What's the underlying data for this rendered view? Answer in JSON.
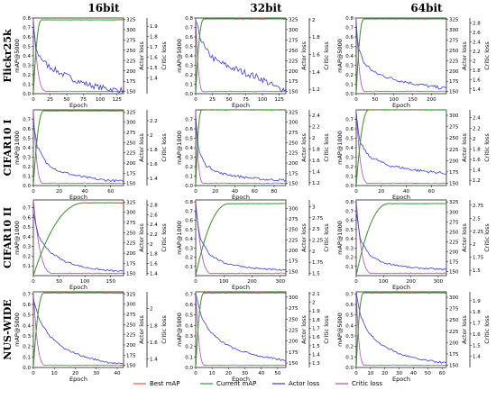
{
  "column_headers": [
    "16bit",
    "32bit",
    "64bit"
  ],
  "row_headers": [
    "Flickr25k",
    "CIFAR10 I",
    "CIFAR10 II",
    "NUS-WIDE"
  ],
  "legend": [
    "Best mAP",
    "Current mAP",
    "Actor loss",
    "Critic loss"
  ],
  "colors": {
    "best_map": "#e8534f",
    "current_map": "#2ca02c",
    "actor_loss": "#3b3bdc",
    "critic_loss": "#b04ab8"
  },
  "chart_data": [
    {
      "type": "line",
      "row": "Flickr25k",
      "col": "16bit",
      "xlabel": "Epoch",
      "ylabel": "mAP@5000",
      "y2label": "Actor loss",
      "y3label": "Critic loss",
      "xlim": [
        0,
        135
      ],
      "xticks": [
        0,
        25,
        50,
        75,
        100,
        125
      ],
      "ylim": [
        0,
        0.8
      ],
      "yticks": [
        0.0,
        0.1,
        0.2,
        0.3,
        0.4,
        0.5,
        0.6,
        0.7,
        0.8
      ],
      "y2lim": [
        145,
        328
      ],
      "y2ticks": [
        150,
        175,
        200,
        225,
        250,
        275,
        300,
        325
      ],
      "y3lim": [
        1.25,
        1.98
      ],
      "y3ticks": [
        1.4,
        1.5,
        1.6,
        1.7,
        1.8,
        1.9
      ],
      "map_rise_end": 12,
      "map_final": 0.78,
      "actor": [
        [
          0,
          300
        ],
        [
          5,
          245
        ],
        [
          20,
          215
        ],
        [
          40,
          195
        ],
        [
          60,
          180
        ],
        [
          80,
          168
        ],
        [
          100,
          160
        ],
        [
          120,
          155
        ],
        [
          135,
          153
        ]
      ],
      "critic_fall_end": 20,
      "noise": 7
    },
    {
      "type": "line",
      "row": "Flickr25k",
      "col": "32bit",
      "xlabel": "Epoch",
      "ylabel": "mAP@5000",
      "y2label": "Actor loss",
      "y3label": "Critic loss",
      "xlim": [
        0,
        135
      ],
      "xticks": [
        0,
        25,
        50,
        75,
        100,
        125
      ],
      "ylim": [
        0,
        0.8
      ],
      "yticks": [
        0.0,
        0.1,
        0.2,
        0.3,
        0.4,
        0.5,
        0.6,
        0.7,
        0.8
      ],
      "y2lim": [
        145,
        328
      ],
      "y2ticks": [
        150,
        175,
        200,
        225,
        250,
        275,
        300,
        325
      ],
      "y3lim": [
        1.15,
        2.02
      ],
      "y3ticks": [
        1.2,
        1.4,
        1.6,
        1.8,
        2.0
      ],
      "map_rise_end": 12,
      "map_final": 0.79,
      "actor": [
        [
          0,
          320
        ],
        [
          5,
          290
        ],
        [
          15,
          250
        ],
        [
          30,
          225
        ],
        [
          50,
          210
        ],
        [
          75,
          195
        ],
        [
          100,
          180
        ],
        [
          120,
          160
        ],
        [
          135,
          155
        ]
      ],
      "critic_fall_end": 12,
      "noise": 8
    },
    {
      "type": "line",
      "row": "Flickr25k",
      "col": "64bit",
      "xlabel": "Epoch",
      "ylabel": "mAP@5000",
      "y2label": "Actor loss",
      "y3label": "Critic loss",
      "xlim": [
        0,
        240
      ],
      "xticks": [
        0,
        50,
        100,
        150,
        200
      ],
      "ylim": [
        0,
        0.8
      ],
      "yticks": [
        0.0,
        0.1,
        0.2,
        0.3,
        0.4,
        0.5,
        0.6,
        0.7,
        0.8
      ],
      "y2lim": [
        145,
        328
      ],
      "y2ticks": [
        150,
        175,
        200,
        225,
        250,
        275,
        300,
        325
      ],
      "y3lim": [
        1.3,
        2.9
      ],
      "y3ticks": [
        1.4,
        1.6,
        1.8,
        2.0,
        2.2,
        2.4,
        2.6,
        2.8
      ],
      "map_rise_end": 20,
      "map_final": 0.79,
      "actor": [
        [
          0,
          310
        ],
        [
          5,
          260
        ],
        [
          20,
          220
        ],
        [
          50,
          195
        ],
        [
          100,
          180
        ],
        [
          150,
          170
        ],
        [
          200,
          162
        ],
        [
          240,
          158
        ]
      ],
      "critic_fall_end": 25,
      "noise": 4
    },
    {
      "type": "line",
      "row": "CIFAR10 I",
      "col": "16bit",
      "xlabel": "Epoch",
      "ylabel": "mAP@1000",
      "y2label": "Actor loss",
      "y3label": "Critic loss",
      "xlim": [
        0,
        70
      ],
      "xticks": [
        0,
        20,
        40,
        60
      ],
      "ylim": [
        0,
        0.8
      ],
      "yticks": [
        0.0,
        0.1,
        0.2,
        0.3,
        0.4,
        0.5,
        0.6,
        0.7
      ],
      "y2lim": [
        145,
        330
      ],
      "y2ticks": [
        150,
        175,
        200,
        225,
        250,
        275,
        300,
        325
      ],
      "y3lim": [
        1.3,
        2.35
      ],
      "y3ticks": [
        1.4,
        1.6,
        1.8,
        2.0,
        2.2
      ],
      "map_rise_end": 8,
      "map_final": 0.79,
      "actor": [
        [
          0,
          300
        ],
        [
          3,
          240
        ],
        [
          10,
          200
        ],
        [
          20,
          180
        ],
        [
          35,
          168
        ],
        [
          50,
          160
        ],
        [
          70,
          155
        ]
      ],
      "critic_fall_end": 8,
      "noise": 3
    },
    {
      "type": "line",
      "row": "CIFAR10 I",
      "col": "32bit",
      "xlabel": "Epoch",
      "ylabel": "mAP@1000",
      "y2label": "Actor loss",
      "y3label": "Critic loss",
      "xlim": [
        0,
        92
      ],
      "xticks": [
        0,
        20,
        40,
        60,
        80
      ],
      "ylim": [
        0,
        0.8
      ],
      "yticks": [
        0.0,
        0.1,
        0.2,
        0.3,
        0.4,
        0.5,
        0.6,
        0.7
      ],
      "y2lim": [
        145,
        330
      ],
      "y2ticks": [
        150,
        175,
        200,
        225,
        250,
        275,
        300,
        325
      ],
      "y3lim": [
        1.15,
        2.5
      ],
      "y3ticks": [
        1.2,
        1.4,
        1.6,
        1.8,
        2.0,
        2.2,
        2.4
      ],
      "map_rise_end": 6,
      "map_final": 0.8,
      "actor": [
        [
          0,
          310
        ],
        [
          3,
          230
        ],
        [
          10,
          195
        ],
        [
          25,
          175
        ],
        [
          50,
          165
        ],
        [
          70,
          160
        ],
        [
          92,
          158
        ]
      ],
      "critic_fall_end": 8,
      "noise": 3
    },
    {
      "type": "line",
      "row": "CIFAR10 I",
      "col": "64bit",
      "xlabel": "Epoch",
      "ylabel": "mAP@1000",
      "y2label": "Actor loss",
      "y3label": "Critic loss",
      "xlim": [
        0,
        72
      ],
      "xticks": [
        0,
        20,
        40,
        60
      ],
      "ylim": [
        0,
        0.8
      ],
      "yticks": [
        0.0,
        0.1,
        0.2,
        0.3,
        0.4,
        0.5,
        0.6,
        0.7
      ],
      "y2lim": [
        145,
        312
      ],
      "y2ticks": [
        150,
        175,
        200,
        225,
        250,
        275,
        300
      ],
      "y3lim": [
        1.1,
        2.55
      ],
      "y3ticks": [
        1.2,
        1.4,
        1.6,
        1.8,
        2.0,
        2.2,
        2.4
      ],
      "map_rise_end": 10,
      "map_final": 0.8,
      "actor": [
        [
          0,
          300
        ],
        [
          3,
          240
        ],
        [
          10,
          210
        ],
        [
          25,
          190
        ],
        [
          45,
          180
        ],
        [
          60,
          175
        ],
        [
          72,
          172
        ]
      ],
      "critic_fall_end": 10,
      "noise": 3
    },
    {
      "type": "line",
      "row": "CIFAR10 II",
      "col": "16bit",
      "xlabel": "Epoch",
      "ylabel": "mAP@1000",
      "y2label": "Actor loss",
      "y3label": "Critic loss",
      "xlim": [
        0,
        175
      ],
      "xticks": [
        0,
        50,
        100,
        150
      ],
      "ylim": [
        0,
        0.78
      ],
      "yticks": [
        0.1,
        0.2,
        0.3,
        0.4,
        0.5,
        0.6,
        0.7
      ],
      "y2lim": [
        145,
        330
      ],
      "y2ticks": [
        150,
        175,
        200,
        225,
        250,
        275,
        300,
        325
      ],
      "y3lim": [
        1.35,
        2.9
      ],
      "y3ticks": [
        1.4,
        1.6,
        1.8,
        2.0,
        2.2,
        2.4,
        2.6,
        2.8
      ],
      "map_rise_end": 100,
      "map_final": 0.75,
      "actor": [
        [
          0,
          300
        ],
        [
          10,
          240
        ],
        [
          30,
          205
        ],
        [
          60,
          180
        ],
        [
          100,
          165
        ],
        [
          140,
          158
        ],
        [
          175,
          155
        ]
      ],
      "critic_fall_end": 40,
      "noise": 2
    },
    {
      "type": "line",
      "row": "CIFAR10 II",
      "col": "32bit",
      "xlabel": "Epoch",
      "ylabel": "mAP@1000",
      "y2label": "Actor loss",
      "y3label": "Critic loss",
      "xlim": [
        0,
        320
      ],
      "xticks": [
        0,
        100,
        200,
        300
      ],
      "ylim": [
        0,
        0.82
      ],
      "yticks": [
        0.1,
        0.2,
        0.3,
        0.4,
        0.5,
        0.6,
        0.7,
        0.8
      ],
      "y2lim": [
        140,
        320
      ],
      "y2ticks": [
        150,
        175,
        200,
        225,
        250,
        275,
        300
      ],
      "y3lim": [
        1.45,
        3.15
      ],
      "y3ticks": [
        1.5,
        1.75,
        2.0,
        2.25,
        2.5,
        2.75,
        3.0
      ],
      "map_rise_end": 120,
      "map_final": 0.78,
      "actor": [
        [
          0,
          300
        ],
        [
          15,
          230
        ],
        [
          50,
          190
        ],
        [
          100,
          170
        ],
        [
          200,
          158
        ],
        [
          320,
          152
        ]
      ],
      "critic_fall_end": 60,
      "noise": 2
    },
    {
      "type": "line",
      "row": "CIFAR10 II",
      "col": "64bit",
      "xlabel": "Epoch",
      "ylabel": "mAP@1000",
      "y2label": "Actor loss",
      "y3label": "Critic loss",
      "xlim": [
        0,
        330
      ],
      "xticks": [
        0,
        100,
        200,
        300
      ],
      "ylim": [
        0,
        0.82
      ],
      "yticks": [
        0.1,
        0.2,
        0.3,
        0.4,
        0.5,
        0.6,
        0.7,
        0.8
      ],
      "y2lim": [
        140,
        330
      ],
      "y2ticks": [
        150,
        175,
        200,
        225,
        250,
        275,
        300,
        325
      ],
      "y3lim": [
        1.4,
        2.85
      ],
      "y3ticks": [
        1.5,
        1.75,
        2.0,
        2.25,
        2.5,
        2.75
      ],
      "map_rise_end": 120,
      "map_final": 0.78,
      "actor": [
        [
          0,
          300
        ],
        [
          15,
          230
        ],
        [
          50,
          190
        ],
        [
          100,
          172
        ],
        [
          200,
          160
        ],
        [
          330,
          155
        ]
      ],
      "critic_fall_end": 60,
      "noise": 2
    },
    {
      "type": "line",
      "row": "NUS-WIDE",
      "col": "16bit",
      "xlabel": "Epoch",
      "ylabel": "mAP@5000",
      "y2label": "Actor loss",
      "y3label": "Critic loss",
      "xlim": [
        0,
        43
      ],
      "xticks": [
        0,
        10,
        20,
        30,
        40
      ],
      "ylim": [
        0,
        0.72
      ],
      "yticks": [
        0.0,
        0.1,
        0.2,
        0.3,
        0.4,
        0.5,
        0.6,
        0.7
      ],
      "y2lim": [
        145,
        330
      ],
      "y2ticks": [
        150,
        175,
        200,
        225,
        250,
        275,
        300,
        325
      ],
      "y3lim": [
        1.3,
        2.2
      ],
      "y3ticks": [
        1.4,
        1.6,
        1.8,
        2.0
      ],
      "map_rise_end": 5,
      "map_final": 0.71,
      "actor": [
        [
          0,
          310
        ],
        [
          3,
          260
        ],
        [
          8,
          220
        ],
        [
          15,
          190
        ],
        [
          25,
          170
        ],
        [
          35,
          158
        ],
        [
          43,
          153
        ]
      ],
      "critic_fall_end": 6,
      "noise": 2
    },
    {
      "type": "line",
      "row": "NUS-WIDE",
      "col": "32bit",
      "xlabel": "Epoch",
      "ylabel": "mAP@5000",
      "y2label": "Actor loss",
      "y3label": "Critic loss",
      "xlim": [
        0,
        55
      ],
      "xticks": [
        0,
        10,
        20,
        30,
        40,
        50
      ],
      "ylim": [
        0,
        0.72
      ],
      "yticks": [
        0.0,
        0.1,
        0.2,
        0.3,
        0.4,
        0.5,
        0.6,
        0.7
      ],
      "y2lim": [
        140,
        312
      ],
      "y2ticks": [
        150,
        175,
        200,
        225,
        250,
        275,
        300
      ],
      "y3lim": [
        1.25,
        2.12
      ],
      "y3ticks": [
        1.3,
        1.4,
        1.5,
        1.6,
        1.7,
        1.8,
        1.9,
        2.0,
        2.1
      ],
      "map_rise_end": 5,
      "map_final": 0.71,
      "actor": [
        [
          0,
          310
        ],
        [
          3,
          260
        ],
        [
          8,
          225
        ],
        [
          15,
          200
        ],
        [
          25,
          180
        ],
        [
          40,
          165
        ],
        [
          55,
          155
        ]
      ],
      "critic_fall_end": 6,
      "noise": 2
    },
    {
      "type": "line",
      "row": "NUS-WIDE",
      "col": "64bit",
      "xlabel": "Epoch",
      "ylabel": "mAP@5000",
      "y2label": "Actor loss",
      "y3label": "Critic loss",
      "xlim": [
        0,
        63
      ],
      "xticks": [
        0,
        10,
        20,
        30,
        40,
        50,
        60
      ],
      "ylim": [
        0,
        0.72
      ],
      "yticks": [
        0.0,
        0.1,
        0.2,
        0.3,
        0.4,
        0.5,
        0.6,
        0.7
      ],
      "y2lim": [
        145,
        312
      ],
      "y2ticks": [
        150,
        175,
        200,
        225,
        250,
        275,
        300
      ],
      "y3lim": [
        1.3,
        1.98
      ],
      "y3ticks": [
        1.4,
        1.5,
        1.6,
        1.7,
        1.8,
        1.9
      ],
      "map_rise_end": 5,
      "map_final": 0.71,
      "actor": [
        [
          0,
          310
        ],
        [
          3,
          260
        ],
        [
          8,
          225
        ],
        [
          15,
          200
        ],
        [
          30,
          175
        ],
        [
          45,
          162
        ],
        [
          63,
          155
        ]
      ],
      "critic_fall_end": 6,
      "noise": 2
    }
  ]
}
